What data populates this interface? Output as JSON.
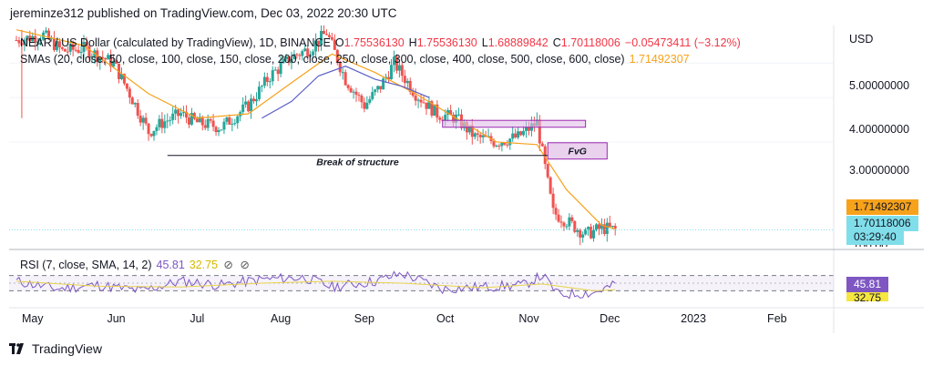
{
  "header": {
    "publisher_line": "jereminze312 published on TradingView.com, Dec 03, 2022 20:30 UTC"
  },
  "legend": {
    "symbol": "NEAR / US Dollar (calculated by TradingView), 1D, BINANCE",
    "o_label": "O",
    "o_value": "1.75536130",
    "h_label": "H",
    "h_value": "1.75536130",
    "l_label": "L",
    "l_value": "1.68889842",
    "c_label": "C",
    "c_value": "1.70118006",
    "change": "−0.05473411 (−3.12%)",
    "sma_label": "SMAs (20, close, 50, close, 100, close, 150, close, 200, close, 250, close, 300, close, 400, close, 500, close, 600, close)",
    "sma_value": "1.71492307"
  },
  "rsi_legend": {
    "label": "RSI (7, close, SMA, 14, 2)",
    "rsi_value": "45.81",
    "sma_value": "32.75"
  },
  "price_axis": {
    "currency": "USD",
    "ticks": [
      "5.00000000",
      "4.00000000",
      "3.00000000"
    ],
    "cut_tick": "100.00"
  },
  "badges": {
    "sma": "1.71492307",
    "last_price": "1.70118006",
    "countdown": "03:29:40",
    "rsi": "45.81",
    "rsi_sma": "32.75"
  },
  "time_axis": [
    "May",
    "Jun",
    "Jul",
    "Aug",
    "Sep",
    "Oct",
    "Nov",
    "Dec",
    "2023",
    "Feb"
  ],
  "annotations": {
    "break_of_structure": "Break of structure",
    "fvg": "FvG"
  },
  "colors": {
    "up": "#26a69a",
    "down": "#ef5350",
    "sma": "#f7a21b",
    "sma2": "#5b5fc7",
    "rsi": "#7e57c2",
    "rsi_sma": "#e8d44d",
    "box_fill": "#e1bee7",
    "box_stroke": "#9c27b0",
    "last_price": "#80deea"
  },
  "footer": {
    "brand": "TradingView"
  },
  "chart_data": [
    {
      "type": "candlestick",
      "title": "NEAR / US Dollar (calculated by TradingView), 1D, BINANCE",
      "ylabel": "USD",
      "x_ticks": [
        "May",
        "Jun",
        "Jul",
        "Aug",
        "Sep",
        "Oct",
        "Nov",
        "Dec",
        "2023",
        "Feb"
      ],
      "y_ticks": [
        3,
        4,
        5
      ],
      "y_scale": "log",
      "ylim": [
        1.55,
        6.3
      ],
      "series": [
        {
          "name": "close (approx.)",
          "x": [
            "2022-04-25",
            "2022-05-05",
            "2022-05-12",
            "2022-05-20",
            "2022-05-31",
            "2022-06-06",
            "2022-06-13",
            "2022-06-18",
            "2022-06-25",
            "2022-07-01",
            "2022-07-10",
            "2022-07-20",
            "2022-07-28",
            "2022-08-05",
            "2022-08-12",
            "2022-08-18",
            "2022-08-25",
            "2022-09-01",
            "2022-09-07",
            "2022-09-12",
            "2022-09-20",
            "2022-09-28",
            "2022-10-05",
            "2022-10-12",
            "2022-10-20",
            "2022-10-28",
            "2022-11-04",
            "2022-11-08",
            "2022-11-10",
            "2022-11-15",
            "2022-11-22",
            "2022-11-28",
            "2022-12-03"
          ],
          "values": [
            5.8,
            6.0,
            5.4,
            5.5,
            5.0,
            4.1,
            3.2,
            3.4,
            3.6,
            3.4,
            3.3,
            3.8,
            4.6,
            5.2,
            5.5,
            6.1,
            4.5,
            3.8,
            4.3,
            5.0,
            4.1,
            3.6,
            3.5,
            3.1,
            3.0,
            3.1,
            3.4,
            2.3,
            1.9,
            1.8,
            1.65,
            1.72,
            1.7
          ]
        },
        {
          "name": "SMA (approx.)",
          "x": [
            "2022-04-25",
            "2022-05-20",
            "2022-06-13",
            "2022-07-01",
            "2022-07-20",
            "2022-08-05",
            "2022-08-20",
            "2022-09-05",
            "2022-09-20",
            "2022-10-05",
            "2022-10-20",
            "2022-11-04",
            "2022-11-15",
            "2022-11-28",
            "2022-12-03"
          ],
          "values": [
            6.2,
            5.6,
            4.1,
            3.5,
            3.6,
            4.4,
            5.3,
            4.7,
            4.1,
            3.5,
            3.0,
            2.95,
            2.2,
            1.75,
            1.71
          ]
        }
      ],
      "annotations": [
        {
          "text": "Break of structure",
          "y": 2.75
        },
        {
          "text": "FvG",
          "y_range": [
            2.75,
            2.95
          ]
        },
        {
          "text": "",
          "y_range": [
            3.3,
            3.45
          ]
        }
      ]
    },
    {
      "type": "line",
      "title": "RSI (7, close, SMA, 14, 2)",
      "ylim": [
        0,
        100
      ],
      "x_ticks": [
        "May",
        "Jun",
        "Jul",
        "Aug",
        "Sep",
        "Oct",
        "Nov",
        "Dec",
        "2023",
        "Feb"
      ],
      "series": [
        {
          "name": "RSI",
          "x": [
            "2022-04-25",
            "2022-05-10",
            "2022-05-25",
            "2022-06-10",
            "2022-06-25",
            "2022-07-10",
            "2022-07-25",
            "2022-08-10",
            "2022-08-20",
            "2022-09-05",
            "2022-09-15",
            "2022-09-30",
            "2022-10-15",
            "2022-10-30",
            "2022-11-06",
            "2022-11-12",
            "2022-11-25",
            "2022-12-03"
          ],
          "values": [
            55,
            35,
            45,
            30,
            55,
            45,
            60,
            65,
            40,
            55,
            75,
            35,
            40,
            45,
            70,
            20,
            25,
            45.81
          ]
        },
        {
          "name": "SMA",
          "x": [
            "2022-04-25",
            "2022-05-25",
            "2022-06-25",
            "2022-07-25",
            "2022-08-20",
            "2022-09-15",
            "2022-10-15",
            "2022-11-06",
            "2022-11-25",
            "2022-12-03"
          ],
          "values": [
            55,
            42,
            40,
            50,
            55,
            50,
            38,
            48,
            30,
            32.75
          ]
        }
      ]
    }
  ]
}
